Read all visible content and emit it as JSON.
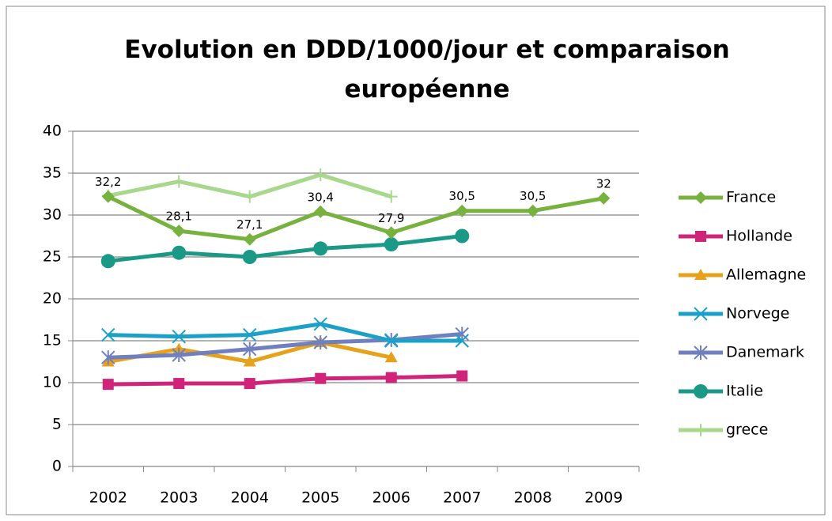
{
  "chart_data": {
    "type": "line",
    "title": "Evolution en DDD/1000/jour et comparaison européenne",
    "categories": [
      "2002",
      "2003",
      "2004",
      "2005",
      "2006",
      "2007",
      "2008",
      "2009"
    ],
    "series": [
      {
        "name": "France",
        "color": "#77b23f",
        "marker": "diamond",
        "values": [
          32.2,
          28.1,
          27.1,
          30.4,
          27.9,
          30.5,
          30.5,
          32
        ],
        "value_labels": [
          "32,2",
          "28,1",
          "27,1",
          "30,4",
          "27,9",
          "30,5",
          "30,5",
          "32"
        ]
      },
      {
        "name": "Hollande",
        "color": "#d0237a",
        "marker": "square",
        "values": [
          9.8,
          9.9,
          9.9,
          10.5,
          10.6,
          10.8,
          null,
          null
        ]
      },
      {
        "name": "Allemagne",
        "color": "#e6a21a",
        "marker": "triangle",
        "values": [
          12.5,
          14,
          12.5,
          14.8,
          13,
          null,
          null,
          null
        ]
      },
      {
        "name": "Norvege",
        "color": "#1ba1c8",
        "marker": "x",
        "values": [
          15.7,
          15.5,
          15.7,
          17,
          15,
          15,
          null,
          null
        ]
      },
      {
        "name": "Danemark",
        "color": "#6f7fc0",
        "marker": "star",
        "values": [
          13,
          13.3,
          14,
          14.8,
          15.1,
          15.8,
          null,
          null
        ]
      },
      {
        "name": "Italie",
        "color": "#1a9a86",
        "marker": "circle",
        "values": [
          24.5,
          25.5,
          25,
          26,
          26.5,
          27.5,
          null,
          null
        ]
      },
      {
        "name": "grece",
        "color": "#a8d88c",
        "marker": "plus",
        "values": [
          32.3,
          34,
          32.2,
          34.8,
          32.2,
          null,
          null,
          null
        ]
      }
    ],
    "ylim": [
      0,
      40
    ],
    "yticks": [
      0,
      5,
      10,
      15,
      20,
      25,
      30,
      35,
      40
    ],
    "grid": true,
    "legend": "right"
  }
}
